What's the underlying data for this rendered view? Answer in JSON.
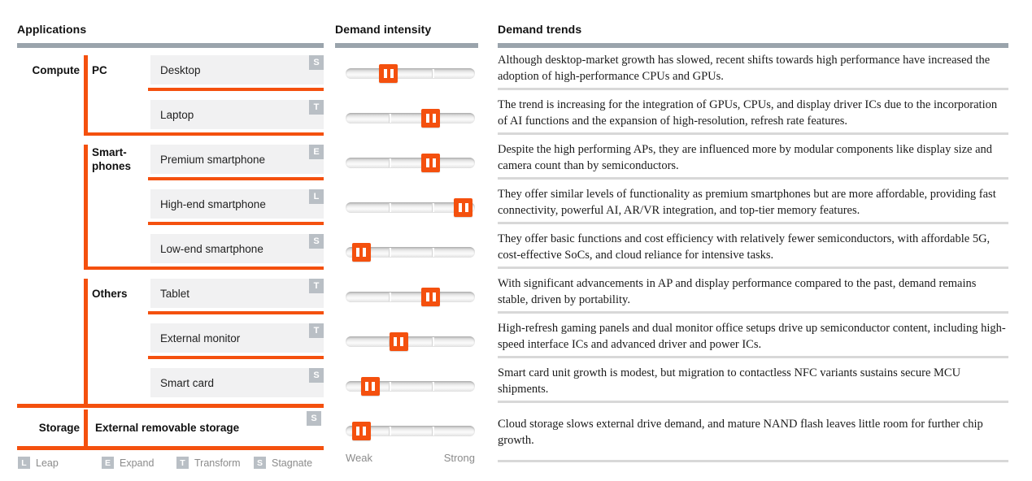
{
  "headers": {
    "applications": "Applications",
    "demand_intensity": "Demand intensity",
    "demand_trends": "Demand trends"
  },
  "scale": {
    "weak": "Weak",
    "strong": "Strong"
  },
  "categories": [
    {
      "label": "Compute",
      "row": 0
    },
    {
      "label": "Storage",
      "row": 8
    }
  ],
  "groups": [
    {
      "label": "PC",
      "label_lines": "PC",
      "first_row": 0,
      "last_row": 1
    },
    {
      "label": "Smart-phones",
      "label_lines": "Smart-\nphones",
      "first_row": 2,
      "last_row": 4
    },
    {
      "label": "Others",
      "label_lines": "Others",
      "first_row": 5,
      "last_row": 7
    }
  ],
  "rows": [
    {
      "category": "Compute",
      "group": "PC",
      "label": "Desktop",
      "badge": "S",
      "intensity_pct": 33,
      "trend": "Although desktop-market growth has slowed, recent shifts towards high performance have increased the adoption of high-performance CPUs and GPUs."
    },
    {
      "group": "PC",
      "label": "Laptop",
      "badge": "T",
      "intensity_pct": 66,
      "trend": "The trend is increasing for the integration of GPUs, CPUs, and display driver ICs due to the incorporation of AI functions and the expansion of high-resolution, refresh rate features."
    },
    {
      "group": "Smart-phones",
      "label": "Premium smartphone",
      "badge": "E",
      "intensity_pct": 66,
      "trend": "Despite the high performing APs, they are influenced more by modular components like display size and camera count than by semiconductors."
    },
    {
      "group": "Smart-phones",
      "label": "High-end smartphone",
      "badge": "L",
      "intensity_pct": 91,
      "trend": "They offer similar levels of functionality as premium smartphones but are more affordable, providing fast connectivity, powerful AI, AR/VR integration, and top-tier memory features."
    },
    {
      "group": "Smart-phones",
      "label": "Low-end smartphone",
      "badge": "S",
      "intensity_pct": 12,
      "trend": "They offer basic functions and cost efficiency with relatively fewer semiconductors, with affordable 5G, cost-effective SoCs, and cloud reliance for intensive tasks."
    },
    {
      "group": "Others",
      "label": "Tablet",
      "badge": "T",
      "intensity_pct": 66,
      "trend": "With significant advancements in AP and display performance compared to the past, demand remains stable, driven by portability."
    },
    {
      "group": "Others",
      "label": "External monitor",
      "badge": "T",
      "intensity_pct": 41,
      "trend": "High-refresh gaming panels and dual monitor office setups drive up semiconductor content, including high-speed interface ICs and advanced driver and power ICs."
    },
    {
      "group": "Others",
      "label": "Smart card",
      "badge": "S",
      "intensity_pct": 19,
      "trend": "Smart card unit growth is modest, but migration to contactless NFC variants sustains secure MCU shipments."
    },
    {
      "category": "Storage",
      "label": "External removable storage",
      "badge": "S",
      "intensity_pct": 12,
      "trend": "Cloud storage slows external drive demand, and mature NAND flash leaves little room for further chip growth."
    }
  ],
  "legend": [
    {
      "code": "L",
      "label": "Leap"
    },
    {
      "code": "E",
      "label": "Expand"
    },
    {
      "code": "T",
      "label": "Transform"
    },
    {
      "code": "S",
      "label": "Stagnate"
    }
  ],
  "colors": {
    "accent_orange": "#f4500e",
    "header_bar_gray": "#9aa4ac",
    "badge_gray": "#b9bfc5",
    "item_box_gray": "#f1f1f2",
    "divider_gray": "#d8d8d8"
  },
  "chart_data": {
    "type": "table",
    "title": "Applications / Demand intensity / Demand trends",
    "intensity_scale": {
      "min_label": "Weak",
      "max_label": "Strong",
      "range": [
        0,
        100
      ]
    },
    "badge_legend": {
      "L": "Leap",
      "E": "Expand",
      "T": "Transform",
      "S": "Stagnate"
    },
    "rows": [
      {
        "category": "Compute",
        "group": "PC",
        "application": "Desktop",
        "badge": "S",
        "intensity": 33
      },
      {
        "category": "Compute",
        "group": "PC",
        "application": "Laptop",
        "badge": "T",
        "intensity": 66
      },
      {
        "category": "Compute",
        "group": "Smart-phones",
        "application": "Premium smartphone",
        "badge": "E",
        "intensity": 66
      },
      {
        "category": "Compute",
        "group": "Smart-phones",
        "application": "High-end smartphone",
        "badge": "L",
        "intensity": 91
      },
      {
        "category": "Compute",
        "group": "Smart-phones",
        "application": "Low-end smartphone",
        "badge": "S",
        "intensity": 12
      },
      {
        "category": "Compute",
        "group": "Others",
        "application": "Tablet",
        "badge": "T",
        "intensity": 66
      },
      {
        "category": "Compute",
        "group": "Others",
        "application": "External monitor",
        "badge": "T",
        "intensity": 41
      },
      {
        "category": "Compute",
        "group": "Others",
        "application": "Smart card",
        "badge": "S",
        "intensity": 19
      },
      {
        "category": "Storage",
        "group": "Storage",
        "application": "External removable storage",
        "badge": "S",
        "intensity": 12
      }
    ]
  }
}
